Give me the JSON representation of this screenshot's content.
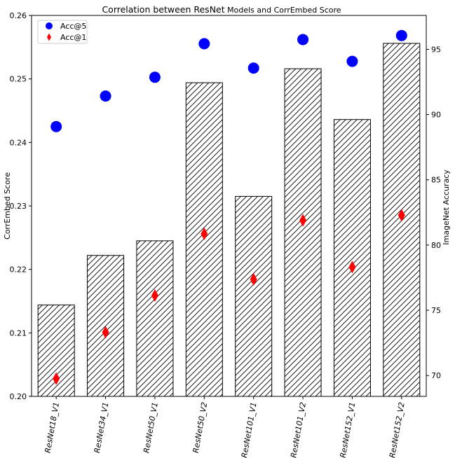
{
  "chart_data": {
    "type": "bar",
    "title": "Correlation between ResNet Models and CorrEmbed Score",
    "title_main": "Correlation between ResNet",
    "title_suffix": " Models and CorrEmbed Score",
    "categories": [
      "ResNet18_V1",
      "ResNet34_V1",
      "ResNet50_V1",
      "ResNet50_V2",
      "ResNet101_V1",
      "ResNet101_V2",
      "ResNet152_V1",
      "ResNet152_V2"
    ],
    "bar_series": {
      "name": "CorrEmbed Score",
      "values": [
        0.2144,
        0.2222,
        0.2245,
        0.2494,
        0.2315,
        0.2516,
        0.2436,
        0.2556
      ],
      "hatch": "////",
      "color": "#000000"
    },
    "left_axis": {
      "label": "CorrEmbed Score",
      "ylim": [
        0.2,
        0.26
      ],
      "ticks": [
        "0.20",
        "0.21",
        "0.22",
        "0.23",
        "0.24",
        "0.25",
        "0.26"
      ]
    },
    "right_axis": {
      "label": "ImageNet Accuracy",
      "ylim": [
        68.4,
        97.6
      ],
      "ticks": [
        "70",
        "75",
        "80",
        "85",
        "90",
        "95"
      ]
    },
    "series": [
      {
        "name": "Acc@5",
        "marker": "circle",
        "color": "#0000ff",
        "values": [
          89.08,
          91.42,
          92.86,
          95.43,
          93.56,
          95.75,
          94.08,
          96.06
        ]
      },
      {
        "name": "Acc@1",
        "marker": "diamond",
        "color": "#ff0000",
        "values": [
          69.76,
          73.31,
          76.13,
          80.86,
          77.37,
          81.89,
          78.31,
          82.28
        ]
      }
    ],
    "grid": false,
    "legend": "top-left"
  }
}
